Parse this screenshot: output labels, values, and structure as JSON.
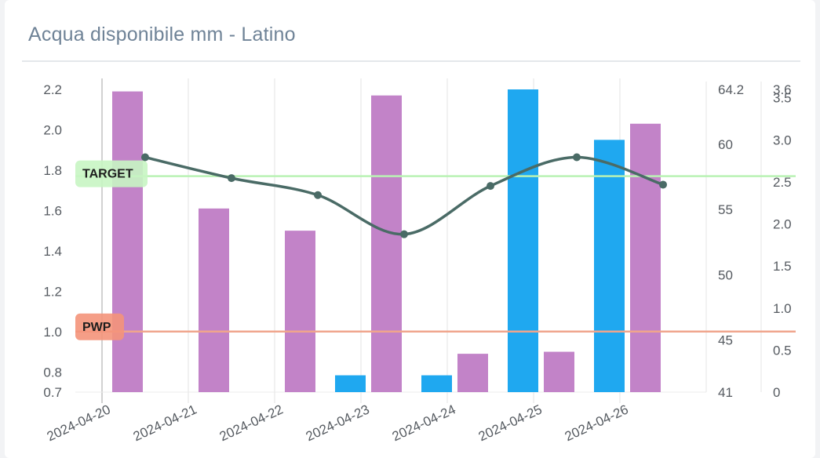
{
  "title": "Acqua disponibile mm - Latino",
  "chart_data": {
    "type": "bar",
    "title": "Acqua disponibile mm - Latino",
    "categories": [
      "2024-04-20",
      "2024-04-21",
      "2024-04-22",
      "2024-04-23",
      "2024-04-24",
      "2024-04-25",
      "2024-04-26"
    ],
    "y_axis_left": {
      "ylim": [
        0.7,
        2.2
      ],
      "ticks": [
        0.7,
        0.8,
        1.0,
        1.2,
        1.4,
        1.6,
        1.8,
        2.0,
        2.2
      ]
    },
    "y_axis_middle": {
      "ylim": [
        41,
        64.2
      ],
      "ticks": [
        41,
        45,
        50,
        55,
        60,
        64.2
      ]
    },
    "y_axis_right": {
      "ylim": [
        0,
        3.6
      ],
      "ticks": [
        0,
        0.5,
        1.0,
        1.5,
        2.0,
        2.5,
        3.0,
        3.5,
        3.6
      ]
    },
    "series": [
      {
        "type": "bar",
        "axis": "left",
        "color": "#c283c8",
        "values": [
          2.19,
          1.61,
          1.5,
          2.17,
          0.89,
          0.9,
          2.03
        ]
      },
      {
        "type": "bar",
        "axis": "right",
        "color": "#1fa8f0",
        "values": [
          0,
          0,
          0.2,
          0.2,
          3.6,
          3.0,
          0
        ]
      },
      {
        "type": "line",
        "axis": "middle",
        "color": "#4a6b66",
        "smooth": true,
        "values": [
          59,
          57.4,
          56.1,
          53.1,
          56.8,
          59,
          56.9
        ]
      }
    ],
    "reference_lines": [
      {
        "label": "TARGET",
        "axis": "left",
        "value": 1.77,
        "color": "#b9f2b4",
        "label_bg": "#c8f5c3"
      },
      {
        "label": "PWP",
        "axis": "left",
        "value": 1.0,
        "color": "#f0a58c",
        "label_bg": "#f4937a"
      }
    ],
    "grid": true
  }
}
